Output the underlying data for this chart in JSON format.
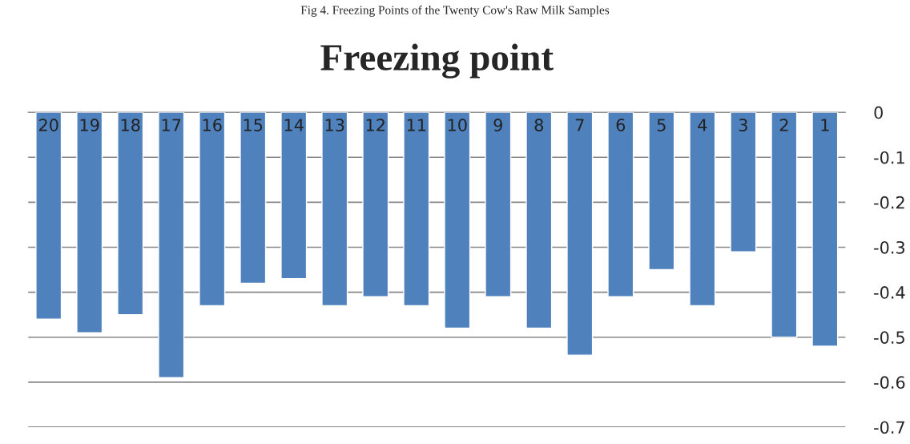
{
  "chart_data": {
    "type": "bar",
    "title": "Freezing point",
    "annotations": [
      "Fig 4. Freezing Points of the Twenty Cow's Raw Milk Samples"
    ],
    "categories": [
      "20",
      "19",
      "18",
      "17",
      "16",
      "15",
      "14",
      "13",
      "12",
      "11",
      "10",
      "9",
      "8",
      "7",
      "6",
      "5",
      "4",
      "3",
      "2",
      "1"
    ],
    "values": [
      -0.46,
      -0.49,
      -0.45,
      -0.59,
      -0.43,
      -0.38,
      -0.37,
      -0.43,
      -0.41,
      -0.43,
      -0.48,
      -0.41,
      -0.48,
      -0.54,
      -0.41,
      -0.35,
      -0.43,
      -0.31,
      -0.5,
      -0.52
    ],
    "color": "#4f81bd",
    "ylim": [
      -0.7,
      0
    ],
    "yticks": [
      0,
      -0.1,
      -0.2,
      -0.3,
      -0.4,
      -0.5,
      -0.6,
      -0.7
    ],
    "grid": "y",
    "legend": false
  }
}
